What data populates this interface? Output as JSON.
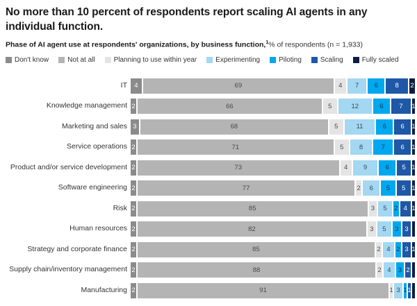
{
  "title": "No more than 10 percent of respondents report scaling AI agents in any individual function.",
  "subtitle": {
    "bold": "Phase of AI agent use at respondents' organizations, by business function,",
    "footnote_marker": "1",
    "rest": "% of respondents (n = 1,933)"
  },
  "legend": [
    {
      "label": "Don't know",
      "color": "#8b8b8b"
    },
    {
      "label": "Not at all",
      "color": "#b4b4b4"
    },
    {
      "label": "Planning to use within year",
      "color": "#e4e4e4"
    },
    {
      "label": "Experimenting",
      "color": "#a3d7f2"
    },
    {
      "label": "Piloting",
      "color": "#00a8ef"
    },
    {
      "label": "Scaling",
      "color": "#1e58a7"
    },
    {
      "label": "Fully scaled",
      "color": "#0b1e46"
    }
  ],
  "chart_data": {
    "type": "bar",
    "orientation": "horizontal",
    "stacked": true,
    "unit": "% of respondents",
    "sample_size": "n = 1,933",
    "legend_position": "top",
    "series_names": [
      "Don't know",
      "Not at all",
      "Planning to use within year",
      "Experimenting",
      "Piloting",
      "Scaling",
      "Fully scaled"
    ],
    "series_colors": [
      "#8b8b8b",
      "#b4b4b4",
      "#e4e4e4",
      "#a3d7f2",
      "#00a8ef",
      "#1e58a7",
      "#0b1e46"
    ],
    "series_text_colors": [
      "#ffffff",
      "#4a4a4a",
      "#4a4a4a",
      "#3a4a58",
      "#20354d",
      "#ffffff",
      "#ffffff"
    ],
    "categories": [
      "IT",
      "Knowledge management",
      "Marketing and sales",
      "Service operations",
      "Product and/or service development",
      "Software engineering",
      "Risk",
      "Human resources",
      "Strategy and corporate finance",
      "Supply chain/inventory management",
      "Manufacturing"
    ],
    "rows": [
      {
        "category": "IT",
        "values": [
          4,
          69,
          4,
          7,
          6,
          8,
          2
        ],
        "labels": [
          "4",
          "69",
          "4",
          "7",
          "6",
          "8",
          "2"
        ]
      },
      {
        "category": "Knowledge management",
        "values": [
          2,
          66,
          5,
          12,
          6,
          7,
          1
        ],
        "labels": [
          "2",
          "66",
          "5",
          "12",
          "6",
          "7",
          "1"
        ]
      },
      {
        "category": "Marketing and sales",
        "values": [
          3,
          68,
          5,
          11,
          6,
          6,
          1
        ],
        "labels": [
          "3",
          "68",
          "5",
          "11",
          "6",
          "6",
          "1"
        ]
      },
      {
        "category": "Service operations",
        "values": [
          2,
          71,
          5,
          8,
          7,
          6,
          1
        ],
        "labels": [
          "2",
          "71",
          "5",
          "8",
          "7",
          "6",
          "1"
        ]
      },
      {
        "category": "Product and/or service development",
        "values": [
          2,
          73,
          4,
          9,
          6,
          5,
          1
        ],
        "labels": [
          "2",
          "73",
          "4",
          "9",
          "6",
          "5",
          "1"
        ]
      },
      {
        "category": "Software engineering",
        "values": [
          2,
          77,
          2,
          6,
          5,
          5,
          1
        ],
        "labels": [
          "2",
          "77",
          "2",
          "6",
          "5",
          "5",
          "1"
        ]
      },
      {
        "category": "Risk",
        "values": [
          2,
          85,
          3,
          5,
          2,
          4,
          1
        ],
        "labels": [
          "2",
          "85",
          "3",
          "5",
          "2",
          "4",
          "1"
        ]
      },
      {
        "category": "Human resources",
        "values": [
          2,
          82,
          3,
          5,
          3,
          3,
          1
        ],
        "labels": [
          "2",
          "82",
          "3",
          "5",
          "3",
          "3",
          ""
        ]
      },
      {
        "category": "Strategy and corporate finance",
        "values": [
          2,
          85,
          2,
          4,
          2,
          3,
          1
        ],
        "labels": [
          "2",
          "85",
          "2",
          "4",
          "2",
          "3",
          "1"
        ]
      },
      {
        "category": "Supply chain/inventory management",
        "values": [
          2,
          88,
          2,
          4,
          3,
          2,
          1
        ],
        "labels": [
          "2",
          "88",
          "2",
          "4",
          "3",
          "2",
          ""
        ]
      },
      {
        "category": "Manufacturing",
        "values": [
          2,
          91,
          1,
          3,
          1,
          1,
          1
        ],
        "labels": [
          "2",
          "91",
          "1",
          "3",
          "1",
          "1",
          ""
        ]
      }
    ]
  }
}
